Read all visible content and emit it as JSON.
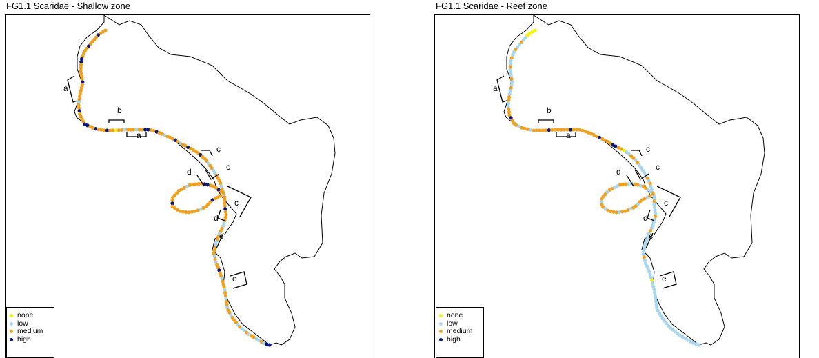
{
  "colors": {
    "none": "#f4f400",
    "low": "#a9d6ec",
    "medium": "#f2a11f",
    "high": "#0b1a7a",
    "outline": "#000000"
  },
  "legend": [
    {
      "key": "none",
      "label": "none"
    },
    {
      "key": "low",
      "label": "low"
    },
    {
      "key": "medium",
      "label": "medium"
    },
    {
      "key": "high",
      "label": "high"
    }
  ],
  "panels": [
    {
      "id": "left",
      "title": "FG1.1 Scaridae - Shallow zone",
      "sites": [
        "a",
        "b",
        "a",
        "c",
        "c",
        "d",
        "c",
        "d",
        "c",
        "e"
      ],
      "pattern": "MMMHMMMMHMMMMHHMMMMMMHMMMMMMLMMHMMMMHHMMHMMMHMMNMMLMMMLMMHHMMHMMLMMMHMLMMHMMMMHMMMLMMLLMMMMLMMLMMMMHMMMMLLMMLMMLLMMMLMLMMHMMLMMMLMMLMMLMMLMMMLMLLMLMMLLMLHH",
      "loop_pattern": "MMHMMMHHMMMMMLMMMMMMMHMMMMMMMMMMLMMMMHMMM"
    },
    {
      "id": "right",
      "title": "FG1.1 Scaridae - Reef zone",
      "sites": [
        "a",
        "b",
        "a",
        "c",
        "c",
        "d",
        "c",
        "d",
        "c",
        "e"
      ],
      "pattern": "NNNNLLMLLMLLMLLMLLLMLLMLLMMLLMMMHMMMLMMMLMMMMMHMMMMMMHMMMMMMMMMHMMMMHHMMNLLMMLMLLLLLMLMLLLLLMLLLLMLLLLMLLLLLLLLMLLLLLLLNLLLLLLLLLLLLLLLLLLLLLLLLLLLL",
      "loop_pattern": "MLLMMLMMLLMMMLLMMLMMMLMMLMMMMLMMMLMMLMMMLM"
    }
  ]
}
